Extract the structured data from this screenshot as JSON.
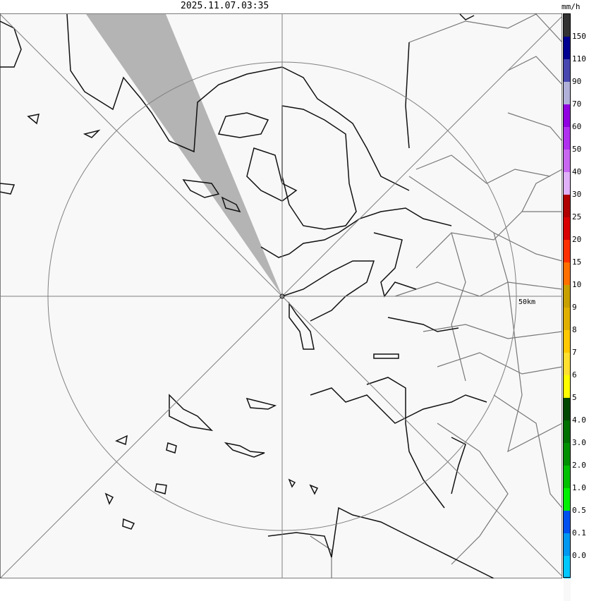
{
  "header": {
    "timestamp": "2025.11.07.03:35",
    "unit": "mm/h"
  },
  "map": {
    "range_ring_label": "50km",
    "background": "#f8f8f8",
    "blocked_sector_color": "#b4b4b4",
    "coast_color": "#111111",
    "boundary_color": "#777777"
  },
  "legend": {
    "top_color": "#333333",
    "bins": [
      {
        "label": "150",
        "color": "#000090"
      },
      {
        "label": "110",
        "color": "#4848b0"
      },
      {
        "label": "90",
        "color": "#b0b0d8"
      },
      {
        "label": "70",
        "color": "#9000e0"
      },
      {
        "label": "60",
        "color": "#b030f0"
      },
      {
        "label": "50",
        "color": "#c868f0"
      },
      {
        "label": "40",
        "color": "#e0b0f8"
      },
      {
        "label": "30",
        "color": "#b00000"
      },
      {
        "label": "25",
        "color": "#d80000"
      },
      {
        "label": "20",
        "color": "#ff3000"
      },
      {
        "label": "15",
        "color": "#ff7000"
      },
      {
        "label": "10",
        "color": "#c8a000"
      },
      {
        "label": "9",
        "color": "#e0b000"
      },
      {
        "label": "8",
        "color": "#ffc800"
      },
      {
        "label": "7",
        "color": "#ffe030"
      },
      {
        "label": "6",
        "color": "#ffff00"
      },
      {
        "label": "5",
        "color": "#004800"
      },
      {
        "label": "4.0",
        "color": "#007000"
      },
      {
        "label": "3.0",
        "color": "#009000"
      },
      {
        "label": "2.0",
        "color": "#00c000"
      },
      {
        "label": "1.0",
        "color": "#00f000"
      },
      {
        "label": "0.5",
        "color": "#0050f0"
      },
      {
        "label": "0.1",
        "color": "#0098f0"
      },
      {
        "label": "0.0",
        "color": "#00c8ff"
      }
    ],
    "bottom_color": "#f8f8f8"
  }
}
